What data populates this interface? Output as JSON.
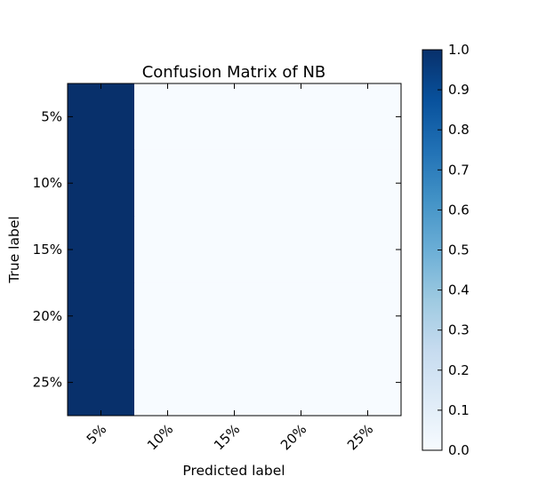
{
  "chart_data": {
    "type": "heatmap",
    "title": "Confusion Matrix of NB",
    "xlabel": "Predicted label",
    "ylabel": "True label",
    "x_categories": [
      "5%",
      "10%",
      "15%",
      "20%",
      "25%"
    ],
    "y_categories": [
      "5%",
      "10%",
      "15%",
      "20%",
      "25%"
    ],
    "values": [
      [
        1,
        0,
        0,
        0,
        0
      ],
      [
        1,
        0,
        0,
        0,
        0
      ],
      [
        1,
        0,
        0,
        0,
        0
      ],
      [
        1,
        0,
        0,
        0,
        0
      ],
      [
        1,
        0,
        0,
        0,
        0
      ]
    ],
    "colormap": "Blues",
    "color_low": "#f7fbff",
    "color_high": "#08306b",
    "colorbar": {
      "range": [
        0.0,
        1.0
      ],
      "ticks": [
        "0.0",
        "0.1",
        "0.2",
        "0.3",
        "0.4",
        "0.5",
        "0.6",
        "0.7",
        "0.8",
        "0.9",
        "1.0"
      ]
    },
    "grid": false,
    "x_tick_rotation_deg": 45
  }
}
